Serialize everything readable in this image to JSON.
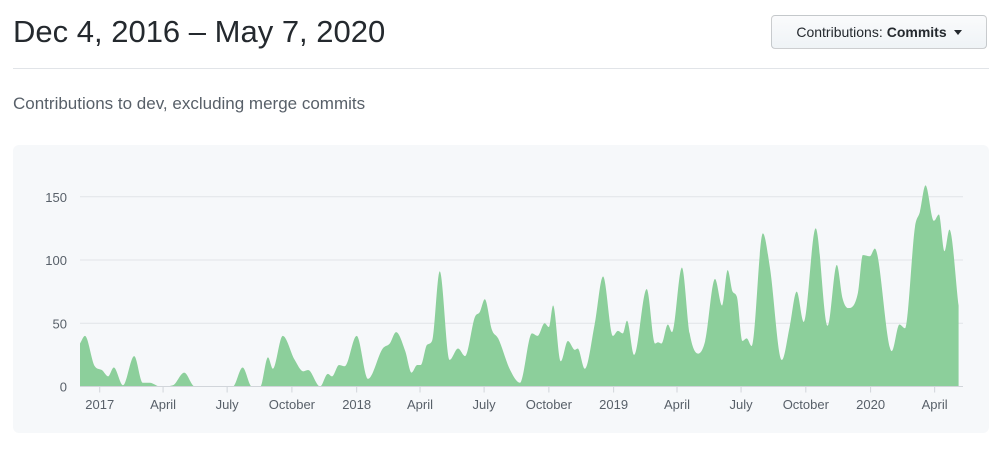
{
  "header": {
    "title": "Dec 4, 2016 – May 7, 2020"
  },
  "filter_button": {
    "prefix": "Contributions:",
    "value": "Commits",
    "icon": "caret-down-icon"
  },
  "subtitle": "Contributions to dev, excluding merge commits",
  "chart_data": {
    "type": "area",
    "title": "",
    "xlabel": "",
    "ylabel": "",
    "color": "#8ccf9b",
    "grid": true,
    "ylim": [
      0,
      160
    ],
    "xlim": [
      "2016-12-04",
      "2020-05-07"
    ],
    "y_ticks": [
      0,
      50,
      100,
      150
    ],
    "x_ticks": [
      {
        "date": "2017-01-01",
        "label": "2017"
      },
      {
        "date": "2017-04-01",
        "label": "April"
      },
      {
        "date": "2017-07-01",
        "label": "July"
      },
      {
        "date": "2017-10-01",
        "label": "October"
      },
      {
        "date": "2018-01-01",
        "label": "2018"
      },
      {
        "date": "2018-04-01",
        "label": "April"
      },
      {
        "date": "2018-07-01",
        "label": "July"
      },
      {
        "date": "2018-10-01",
        "label": "October"
      },
      {
        "date": "2019-01-01",
        "label": "2019"
      },
      {
        "date": "2019-04-01",
        "label": "April"
      },
      {
        "date": "2019-07-01",
        "label": "July"
      },
      {
        "date": "2019-10-01",
        "label": "October"
      },
      {
        "date": "2020-01-01",
        "label": "2020"
      },
      {
        "date": "2020-04-01",
        "label": "April"
      }
    ],
    "series": [
      {
        "points": [
          [
            "2016-12-04",
            34
          ],
          [
            "2016-12-11",
            40
          ],
          [
            "2016-12-25",
            16
          ],
          [
            "2017-01-04",
            13
          ],
          [
            "2017-01-13",
            8
          ],
          [
            "2017-01-21",
            15
          ],
          [
            "2017-02-03",
            1
          ],
          [
            "2017-02-19",
            24
          ],
          [
            "2017-03-03",
            3
          ],
          [
            "2017-03-13",
            3
          ],
          [
            "2017-03-28",
            0
          ],
          [
            "2017-04-15",
            1
          ],
          [
            "2017-05-01",
            11
          ],
          [
            "2017-05-16",
            0
          ],
          [
            "2017-07-09",
            0
          ],
          [
            "2017-07-23",
            15
          ],
          [
            "2017-08-05",
            0
          ],
          [
            "2017-08-17",
            0
          ],
          [
            "2017-08-28",
            23
          ],
          [
            "2017-09-04",
            14
          ],
          [
            "2017-09-18",
            40
          ],
          [
            "2017-10-05",
            21
          ],
          [
            "2017-10-17",
            12
          ],
          [
            "2017-10-24",
            13
          ],
          [
            "2017-11-10",
            0
          ],
          [
            "2017-11-21",
            10
          ],
          [
            "2017-11-27",
            8
          ],
          [
            "2017-12-07",
            17
          ],
          [
            "2017-12-15",
            16
          ],
          [
            "2018-01-01",
            40
          ],
          [
            "2018-01-17",
            6
          ],
          [
            "2018-02-07",
            30
          ],
          [
            "2018-02-17",
            34
          ],
          [
            "2018-02-26",
            43
          ],
          [
            "2018-03-11",
            28
          ],
          [
            "2018-03-20",
            11
          ],
          [
            "2018-03-28",
            17
          ],
          [
            "2018-04-02",
            17
          ],
          [
            "2018-04-11",
            33
          ],
          [
            "2018-04-18",
            36
          ],
          [
            "2018-04-29",
            91
          ],
          [
            "2018-05-13",
            21
          ],
          [
            "2018-05-25",
            30
          ],
          [
            "2018-06-04",
            24
          ],
          [
            "2018-06-18",
            55
          ],
          [
            "2018-06-25",
            59
          ],
          [
            "2018-07-02",
            69
          ],
          [
            "2018-07-12",
            45
          ],
          [
            "2018-07-21",
            38
          ],
          [
            "2018-08-07",
            13
          ],
          [
            "2018-08-21",
            3
          ],
          [
            "2018-09-07",
            42
          ],
          [
            "2018-09-15",
            40
          ],
          [
            "2018-09-25",
            50
          ],
          [
            "2018-10-01",
            47
          ],
          [
            "2018-10-07",
            64
          ],
          [
            "2018-10-18",
            20
          ],
          [
            "2018-10-28",
            36
          ],
          [
            "2018-11-07",
            29
          ],
          [
            "2018-11-11",
            30
          ],
          [
            "2018-11-21",
            14
          ],
          [
            "2018-12-05",
            49
          ],
          [
            "2018-12-17",
            87
          ],
          [
            "2018-12-31",
            40
          ],
          [
            "2019-01-07",
            44
          ],
          [
            "2019-01-14",
            42
          ],
          [
            "2019-01-20",
            52
          ],
          [
            "2019-01-30",
            25
          ],
          [
            "2019-02-17",
            77
          ],
          [
            "2019-03-01",
            34
          ],
          [
            "2019-03-05",
            35
          ],
          [
            "2019-03-10",
            34
          ],
          [
            "2019-03-19",
            49
          ],
          [
            "2019-03-25",
            43
          ],
          [
            "2019-04-08",
            94
          ],
          [
            "2019-04-19",
            42
          ],
          [
            "2019-05-01",
            26
          ],
          [
            "2019-05-11",
            36
          ],
          [
            "2019-05-25",
            85
          ],
          [
            "2019-06-04",
            64
          ],
          [
            "2019-06-12",
            92
          ],
          [
            "2019-06-19",
            75
          ],
          [
            "2019-06-25",
            71
          ],
          [
            "2019-07-03",
            36
          ],
          [
            "2019-07-09",
            38
          ],
          [
            "2019-07-16",
            32
          ],
          [
            "2019-08-01",
            121
          ],
          [
            "2019-08-11",
            94
          ],
          [
            "2019-08-28",
            21
          ],
          [
            "2019-09-08",
            47
          ],
          [
            "2019-09-18",
            75
          ],
          [
            "2019-09-28",
            51
          ],
          [
            "2019-10-15",
            125
          ],
          [
            "2019-11-01",
            48
          ],
          [
            "2019-11-14",
            96
          ],
          [
            "2019-11-22",
            70
          ],
          [
            "2019-11-30",
            62
          ],
          [
            "2019-12-14",
            74
          ],
          [
            "2019-12-21",
            104
          ],
          [
            "2019-12-31",
            103
          ],
          [
            "2020-01-07",
            109
          ],
          [
            "2020-01-31",
            28
          ],
          [
            "2020-02-11",
            49
          ],
          [
            "2020-02-19",
            46
          ],
          [
            "2020-03-04",
            126
          ],
          [
            "2020-03-11",
            138
          ],
          [
            "2020-03-19",
            159
          ],
          [
            "2020-03-31",
            131
          ],
          [
            "2020-04-07",
            136
          ],
          [
            "2020-04-15",
            107
          ],
          [
            "2020-04-22",
            124
          ],
          [
            "2020-05-05",
            64
          ]
        ]
      }
    ]
  }
}
